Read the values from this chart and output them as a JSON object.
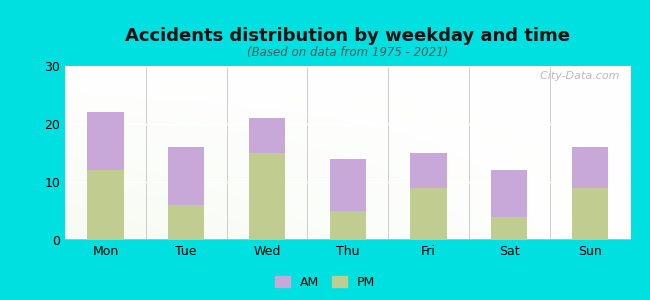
{
  "categories": [
    "Mon",
    "Tue",
    "Wed",
    "Thu",
    "Fri",
    "Sat",
    "Sun"
  ],
  "pm_values": [
    12,
    6,
    15,
    5,
    9,
    4,
    9
  ],
  "am_values": [
    10,
    10,
    6,
    9,
    6,
    8,
    7
  ],
  "am_color": "#c8a8d8",
  "pm_color": "#c0cc90",
  "title": "Accidents distribution by weekday and time",
  "subtitle": "(Based on data from 1975 - 2021)",
  "ylim": [
    0,
    30
  ],
  "yticks": [
    0,
    10,
    20,
    30
  ],
  "background_color": "#00e0e0",
  "bar_width": 0.45,
  "title_fontsize": 13,
  "subtitle_fontsize": 8.5,
  "watermark": "  City-Data.com",
  "legend_fontsize": 9
}
